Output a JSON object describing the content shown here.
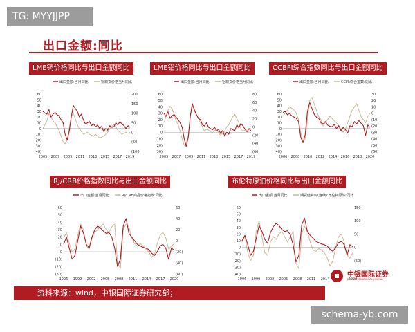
{
  "watermark_top": "TG: MYYJJPP",
  "slide_title": "出口金额:同比",
  "footer_text": "资料来源：wind，中银国际证券研究部；",
  "logo": {
    "name": "中银国际证券",
    "en": "BOC INTERNATIONAL (CHINA)"
  },
  "watermark_bottom": "schema-yb.com",
  "colors": {
    "primary": "#b01c22",
    "secondary": "#c9b99a"
  },
  "chart_data": [
    {
      "type": "line",
      "title": "LME铜价格同比与出口金额同比",
      "x_ticks": [
        "2005",
        "2007",
        "2009",
        "2011",
        "2013",
        "2015",
        "2017",
        "2019"
      ],
      "y_left_ticks": [
        "60",
        "50",
        "40",
        "30",
        "20",
        "10",
        "0",
        "(10)",
        "(20)",
        "(30)",
        "(40)"
      ],
      "y_left_range": [
        -40,
        60
      ],
      "y_right_ticks": [
        "200",
        "150",
        "100",
        "50",
        "0",
        "(50)",
        "(100)"
      ],
      "y_right_range": [
        -100,
        200
      ],
      "series": [
        {
          "name": "出口金额:当月同比",
          "axis": "left",
          "color": "#b01c22",
          "values": [
            30,
            27,
            25,
            33,
            20,
            25,
            28,
            24,
            22,
            15,
            10,
            -10,
            -20,
            -5,
            20,
            40,
            35,
            30,
            20,
            25,
            15,
            8,
            10,
            12,
            5,
            8,
            3,
            6,
            0,
            4,
            -5,
            0,
            -3,
            5,
            2,
            3,
            10,
            6,
            12,
            8,
            5,
            0,
            5,
            2
          ]
        },
        {
          "name": "铜现货价格当月同比",
          "axis": "right",
          "color": "#c9b99a",
          "values": [
            20,
            40,
            60,
            100,
            80,
            60,
            50,
            30,
            10,
            -20,
            -50,
            -60,
            -40,
            20,
            80,
            100,
            70,
            40,
            20,
            5,
            -10,
            -5,
            0,
            -10,
            -15,
            -20,
            -10,
            -20,
            -30,
            -25,
            -20,
            -10,
            0,
            20,
            30,
            40,
            30,
            10,
            0,
            -10,
            -5,
            0,
            -5,
            0
          ]
        }
      ]
    },
    {
      "type": "line",
      "title": "LME铝价格同比与出口金额同比",
      "x_ticks": [
        "2005",
        "2007",
        "2009",
        "2011",
        "2013",
        "2015",
        "2017",
        "2019"
      ],
      "y_left_ticks": [
        "60",
        "50",
        "40",
        "30",
        "20",
        "10",
        "0",
        "(10)",
        "(20)",
        "(30)"
      ],
      "y_left_range": [
        -30,
        60
      ],
      "y_right_ticks": [
        "80",
        "60",
        "40",
        "20",
        "0",
        "(20)",
        "(40)",
        "(60)"
      ],
      "y_right_range": [
        -60,
        80
      ],
      "series": [
        {
          "name": "出口金额:当月同比",
          "axis": "left",
          "color": "#b01c22",
          "values": [
            30,
            25,
            32,
            22,
            26,
            28,
            24,
            20,
            15,
            8,
            -10,
            -22,
            -8,
            25,
            45,
            35,
            28,
            22,
            20,
            12,
            10,
            15,
            8,
            6,
            4,
            8,
            2,
            5,
            -2,
            3,
            -6,
            0,
            -3,
            6,
            4,
            3,
            12,
            7,
            14,
            10,
            5,
            1,
            6,
            2
          ]
        },
        {
          "name": "铝现货价格当月同比",
          "axis": "right",
          "color": "#c9b99a",
          "values": [
            10,
            25,
            40,
            50,
            45,
            30,
            15,
            5,
            -10,
            -30,
            -45,
            -40,
            -20,
            25,
            50,
            45,
            30,
            20,
            10,
            0,
            -10,
            -5,
            -8,
            -12,
            -15,
            -10,
            -5,
            -15,
            -20,
            -15,
            -10,
            0,
            5,
            15,
            25,
            30,
            20,
            10,
            -5,
            -10,
            -8,
            -5,
            -6,
            -4
          ]
        }
      ]
    },
    {
      "type": "line",
      "title": "CCBFI综合指数同比与出口金额同比",
      "x_ticks": [
        "2006",
        "2008",
        "2010",
        "2012",
        "2014",
        "2016",
        "2018",
        "2020"
      ],
      "y_left_ticks": [
        "60",
        "50",
        "40",
        "30",
        "20",
        "10",
        "0",
        "(10)",
        "(20)",
        "(30)",
        "(40)"
      ],
      "y_left_range": [
        -40,
        60
      ],
      "y_right_ticks": [
        "30",
        "20",
        "10",
        "0",
        "(10)",
        "(20)",
        "(30)",
        "(40)",
        "(50)",
        "(60)"
      ],
      "y_right_range": [
        -60,
        30
      ],
      "series": [
        {
          "name": "出口金额:当月同比",
          "axis": "left",
          "color": "#b01c22",
          "values": [
            28,
            30,
            24,
            26,
            22,
            20,
            18,
            12,
            -15,
            -25,
            -10,
            30,
            45,
            35,
            25,
            20,
            18,
            10,
            8,
            12,
            6,
            4,
            3,
            7,
            0,
            5,
            -4,
            2,
            -2,
            -8,
            5,
            3,
            12,
            8,
            14,
            9,
            5,
            -12,
            6,
            2
          ]
        },
        {
          "name": "CCFI:综合指数:同比",
          "axis": "right",
          "color": "#c9b99a",
          "values": [
            -5,
            0,
            5,
            10,
            8,
            5,
            0,
            -10,
            -30,
            -45,
            -40,
            -10,
            20,
            25,
            15,
            5,
            -5,
            -10,
            -20,
            -15,
            -10,
            -5,
            -8,
            -12,
            -15,
            -20,
            -25,
            -30,
            -25,
            -15,
            -5,
            5,
            10,
            15,
            5,
            -5,
            -10,
            -15,
            -5,
            0
          ]
        }
      ]
    },
    {
      "type": "line",
      "title": "RJ/CRB价格指数同比与出口金额同比",
      "x_ticks": [
        "1996",
        "1999",
        "2002",
        "2005",
        "2008",
        "2011",
        "2014",
        "2017",
        "2020"
      ],
      "y_left_ticks": [
        "60",
        "50",
        "40",
        "30",
        "20",
        "10",
        "0",
        "(10)",
        "(20)",
        "(30)"
      ],
      "y_left_range": [
        -30,
        60
      ],
      "y_right_ticks": [
        "60",
        "40",
        "20",
        "0",
        "(20)",
        "(40)",
        "(60)"
      ],
      "y_right_range": [
        -60,
        60
      ],
      "series": [
        {
          "name": "出口金额:当月同比",
          "axis": "left",
          "color": "#b01c22",
          "values": [
            10,
            20,
            5,
            -10,
            -5,
            15,
            35,
            25,
            10,
            5,
            20,
            30,
            35,
            32,
            28,
            25,
            26,
            20,
            5,
            -20,
            -10,
            35,
            45,
            25,
            20,
            15,
            10,
            8,
            6,
            5,
            3,
            -2,
            -5,
            0,
            8,
            10,
            5,
            -10,
            5,
            2
          ]
        },
        {
          "name": "RJ/CRB商品价格指数:同比",
          "axis": "right",
          "color": "#c9b99a",
          "values": [
            5,
            15,
            -5,
            -20,
            -15,
            10,
            30,
            20,
            -10,
            -15,
            5,
            15,
            20,
            25,
            30,
            20,
            15,
            25,
            30,
            -40,
            -50,
            20,
            30,
            25,
            5,
            -5,
            -10,
            -5,
            -10,
            -15,
            -20,
            -30,
            -25,
            -5,
            10,
            15,
            5,
            -15,
            -10,
            -5
          ]
        }
      ]
    },
    {
      "type": "line",
      "title": "布伦特原油价格同比与出口金额同比",
      "x_ticks": [
        "1996",
        "1999",
        "2002",
        "2005",
        "2008",
        "2011",
        "2014",
        "2017",
        "2020"
      ],
      "y_left_ticks": [
        "60",
        "50",
        "40",
        "30",
        "20",
        "10",
        "0",
        "(10)",
        "(20)",
        "(30)",
        "(40)"
      ],
      "y_left_range": [
        -40,
        60
      ],
      "y_right_ticks": [
        "150",
        "100",
        "50",
        "0",
        "(50)",
        "(100)"
      ],
      "y_right_range": [
        -100,
        150
      ],
      "series": [
        {
          "name": "出口金额:当月同比",
          "axis": "left",
          "color": "#b01c22",
          "values": [
            10,
            18,
            4,
            -12,
            -6,
            14,
            33,
            24,
            12,
            6,
            22,
            31,
            36,
            33,
            27,
            24,
            25,
            19,
            4,
            -22,
            -12,
            34,
            44,
            24,
            18,
            14,
            9,
            7,
            5,
            4,
            2,
            -3,
            -6,
            0,
            7,
            9,
            4,
            -12,
            4,
            1
          ]
        },
        {
          "name": "期货结算价(连续):布伦特原油:同比",
          "axis": "right",
          "color": "#c9b99a",
          "values": [
            20,
            40,
            -20,
            -50,
            -30,
            60,
            100,
            40,
            -20,
            -30,
            20,
            40,
            30,
            50,
            60,
            40,
            20,
            40,
            60,
            -60,
            -80,
            50,
            80,
            60,
            20,
            -10,
            -15,
            -5,
            -10,
            -20,
            -40,
            -70,
            -50,
            0,
            40,
            50,
            20,
            -30,
            -40,
            -20
          ]
        }
      ]
    }
  ]
}
